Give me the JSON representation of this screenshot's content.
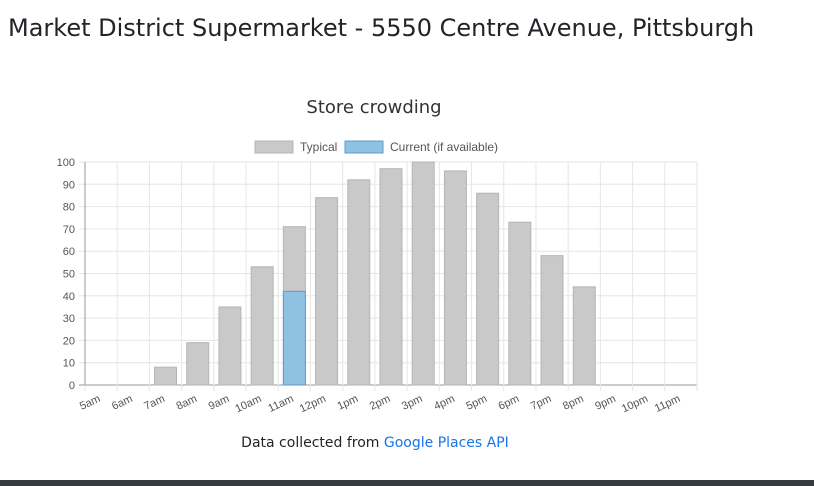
{
  "page": {
    "title": "Market District Supermarket - 5550 Centre Avenue, Pittsburgh"
  },
  "chart_data": {
    "type": "bar",
    "title": "Store crowding",
    "categories": [
      "5am",
      "6am",
      "7am",
      "8am",
      "9am",
      "10am",
      "11am",
      "12pm",
      "1pm",
      "2pm",
      "3pm",
      "4pm",
      "5pm",
      "6pm",
      "7pm",
      "8pm",
      "9pm",
      "10pm",
      "11pm"
    ],
    "series": [
      {
        "name": "Typical",
        "color": "#c9c9c9",
        "border": "#b5b5b5",
        "values": [
          0,
          0,
          8,
          19,
          35,
          53,
          71,
          84,
          92,
          97,
          100,
          96,
          86,
          73,
          58,
          44,
          0,
          0,
          0
        ]
      },
      {
        "name": "Current (if available)",
        "color": "#8fc1e3",
        "border": "#5b9bd1",
        "values": [
          null,
          null,
          null,
          null,
          null,
          null,
          42,
          null,
          null,
          null,
          null,
          null,
          null,
          null,
          null,
          null,
          null,
          null,
          null
        ]
      }
    ],
    "ylim": [
      0,
      100
    ],
    "yticks": [
      0,
      10,
      20,
      30,
      40,
      50,
      60,
      70,
      80,
      90,
      100
    ],
    "xlabel": "",
    "ylabel": "",
    "grid": true,
    "legend": "top",
    "overlay_bars": true
  },
  "footer": {
    "prefix": "Data collected from ",
    "link_label": "Google Places API"
  }
}
